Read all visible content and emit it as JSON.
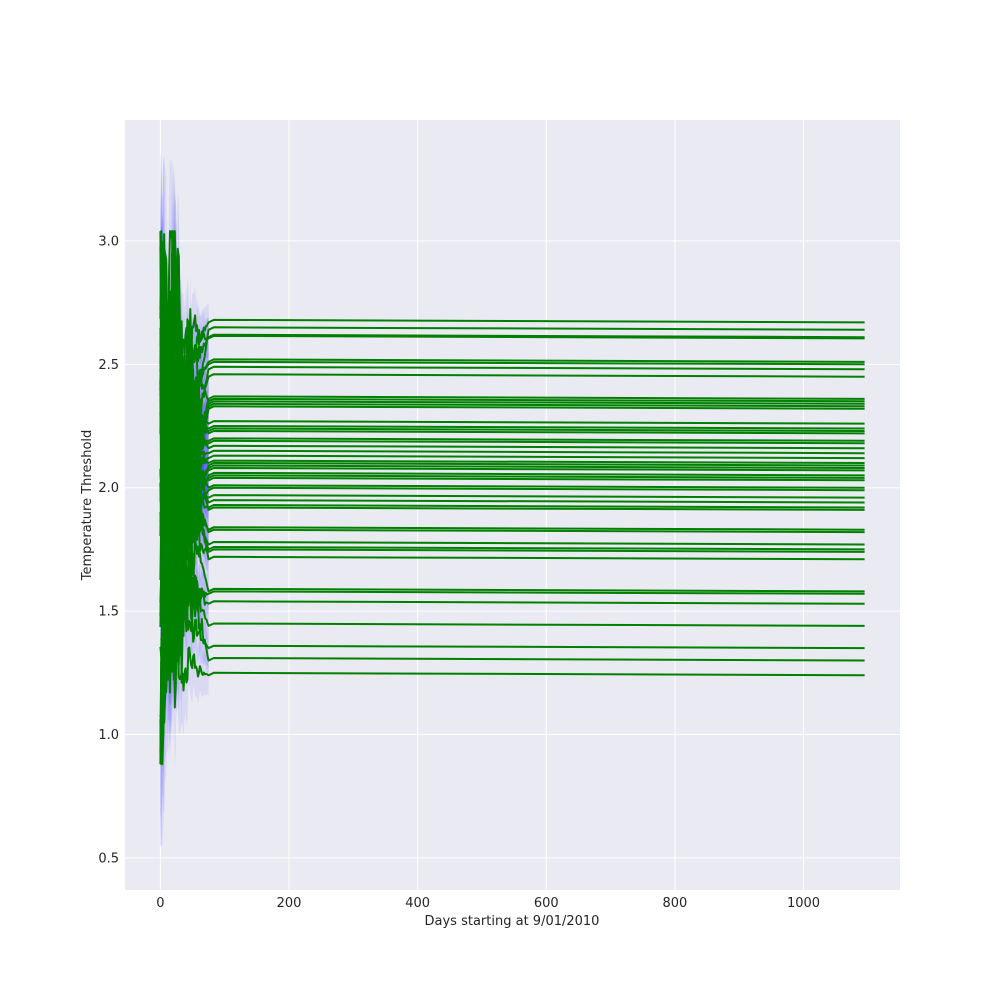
{
  "chart_data": {
    "type": "line",
    "title": "",
    "xlabel": "Days starting at 9/01/2010",
    "ylabel": "Temperature Threshold",
    "xlim": [
      -55,
      1150
    ],
    "ylim": [
      0.37,
      3.49
    ],
    "x_ticks": [
      0,
      200,
      400,
      600,
      800,
      1000
    ],
    "y_ticks": [
      0.5,
      1.0,
      1.5,
      2.0,
      2.5,
      3.0
    ],
    "x_tick_labels": [
      "0",
      "200",
      "400",
      "600",
      "800",
      "1000"
    ],
    "y_tick_labels": [
      "0.5",
      "1.0",
      "1.5",
      "2.0",
      "2.5",
      "3.0"
    ],
    "grid": true,
    "legend": "none",
    "x_end": 1095,
    "converge_day": 75,
    "series_color": "#008000",
    "band_color": "#0000ff",
    "background": "#eaeaf2",
    "series_final_values": [
      2.67,
      2.64,
      2.61,
      2.605,
      2.51,
      2.5,
      2.48,
      2.45,
      2.36,
      2.35,
      2.34,
      2.33,
      2.32,
      2.26,
      2.24,
      2.23,
      2.22,
      2.19,
      2.18,
      2.16,
      2.14,
      2.12,
      2.1,
      2.09,
      2.08,
      2.07,
      2.05,
      2.04,
      2.03,
      2.0,
      1.99,
      1.96,
      1.94,
      1.92,
      1.91,
      1.83,
      1.82,
      1.77,
      1.75,
      1.74,
      1.71,
      1.58,
      1.57,
      1.53,
      1.44,
      1.35,
      1.3,
      1.24
    ],
    "early_extremes": {
      "max": 3.04,
      "min": 0.88,
      "band_max": 3.35,
      "band_min": 0.55
    }
  }
}
